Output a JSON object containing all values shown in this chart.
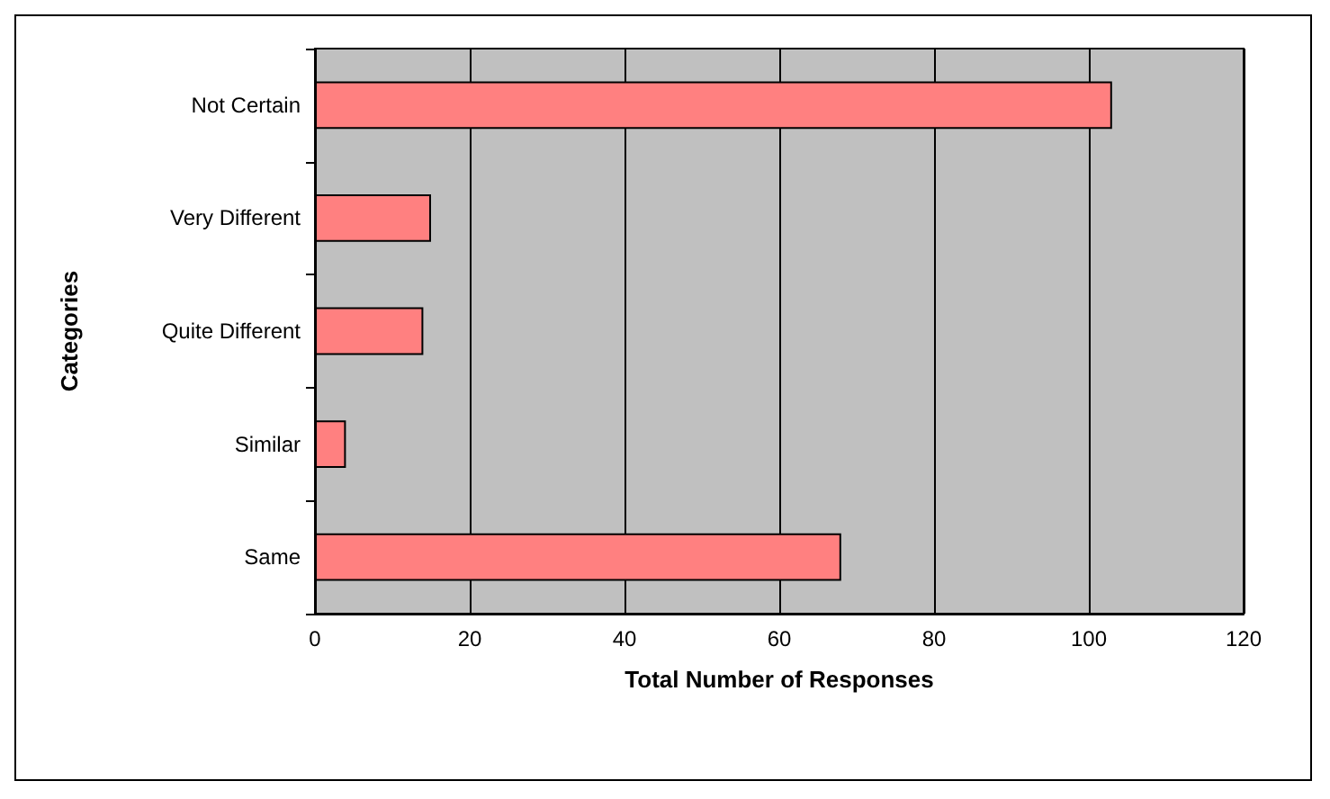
{
  "chart_data": {
    "type": "bar",
    "orientation": "horizontal",
    "xlabel": "Total Number of Responses",
    "ylabel": "Categories",
    "categories": [
      "Not Certain",
      "Very Different",
      "Quite Different",
      "Similar",
      "Same"
    ],
    "values": [
      103,
      15,
      14,
      4,
      68
    ],
    "color": "#ff8080",
    "xlim": [
      0,
      120
    ],
    "xticks": [
      0,
      20,
      40,
      60,
      80,
      100,
      120
    ],
    "grid": "x"
  }
}
